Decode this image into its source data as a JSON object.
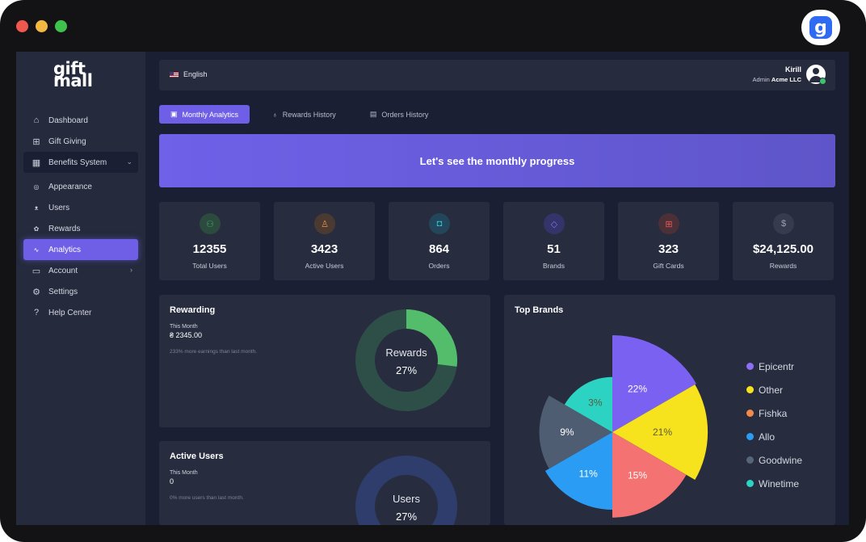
{
  "window": {
    "dots": [
      "#f0574f",
      "#f4b842",
      "#3fc14d"
    ],
    "app_icon": "gift-mall-app-icon",
    "app_icon_letter": "g"
  },
  "brand": {
    "line1": "gift",
    "line2": "mall"
  },
  "sidebar": {
    "items": [
      {
        "label": "Dashboard",
        "icon": "home-icon"
      },
      {
        "label": "Gift Giving",
        "icon": "gift-icon"
      },
      {
        "label": "Benefits System",
        "icon": "grid-icon"
      },
      {
        "label": "Appearance",
        "icon": "palette-icon"
      },
      {
        "label": "Users",
        "icon": "users-icon"
      },
      {
        "label": "Rewards",
        "icon": "award-icon"
      },
      {
        "label": "Analytics",
        "icon": "pulse-icon"
      },
      {
        "label": "Account",
        "icon": "document-icon"
      },
      {
        "label": "Settings",
        "icon": "gear-icon"
      },
      {
        "label": "Help Center",
        "icon": "help-icon"
      }
    ]
  },
  "header": {
    "language": "English",
    "user_name": "Kirill",
    "user_role": "Admin",
    "user_company": "Acme LLC"
  },
  "tabs": [
    {
      "label": "Monthly Analytics",
      "icon": "calendar-icon"
    },
    {
      "label": "Rewards History",
      "icon": "award-icon"
    },
    {
      "label": "Orders History",
      "icon": "box-icon"
    }
  ],
  "banner": {
    "text": "Let's see the monthly progress"
  },
  "stats": [
    {
      "value": "12355",
      "label": "Total Users",
      "icon": "users-icon",
      "color": "#3ea96a"
    },
    {
      "value": "3423",
      "label": "Active Users",
      "icon": "user-icon",
      "color": "#e7904a"
    },
    {
      "value": "864",
      "label": "Orders",
      "icon": "shopping-bag-icon",
      "color": "#33bcd0"
    },
    {
      "value": "51",
      "label": "Brands",
      "icon": "tag-icon",
      "color": "#7d72f0"
    },
    {
      "value": "323",
      "label": "Gift Cards",
      "icon": "gift-icon",
      "color": "#e45858"
    },
    {
      "value": "$24,125.00",
      "label": "Rewards",
      "icon": "dollar-icon",
      "color": "#9aa0b6"
    }
  ],
  "rewarding": {
    "title": "Rewarding",
    "period": "This Month",
    "amount": "₴ 2345.00",
    "note": "233% more earnings than last month.",
    "donut_label": "Rewards",
    "donut_value": "27%",
    "fraction": 0.27,
    "fill_color": "#54bd6b",
    "track_color": "#2e4e48"
  },
  "active_users": {
    "title": "Active Users",
    "period": "This Month",
    "amount": "0",
    "note": "0% more users than last month.",
    "donut_label": "Users",
    "donut_value": "27%",
    "track_color": "#2f3d6c"
  },
  "top_brands": {
    "title": "Top Brands",
    "chart_data": {
      "type": "pie",
      "slices": [
        {
          "name": "Epicentr",
          "value": 22,
          "label": "22%",
          "color": "#7b61f2"
        },
        {
          "name": "Other",
          "value": 21,
          "label": "21%",
          "color": "#f6e21d"
        },
        {
          "name": "Fishka",
          "value": 15,
          "label": "15%",
          "color": "#f47272"
        },
        {
          "name": "Allo",
          "value": 11,
          "label": "11%",
          "color": "#2a9cf4"
        },
        {
          "name": "Goodwine",
          "value": 9,
          "label": "9%",
          "color": "#4f5d72"
        },
        {
          "name": "Winetime",
          "value": 3,
          "label": "3%",
          "color": "#2dd3c2"
        }
      ]
    },
    "legend": [
      {
        "name": "Epicentr",
        "color": "#8b6ff5"
      },
      {
        "name": "Other",
        "color": "#f6e21d"
      },
      {
        "name": "Fishka",
        "color": "#f28a4a"
      },
      {
        "name": "Allo",
        "color": "#2a9cf4"
      },
      {
        "name": "Goodwine",
        "color": "#56657a"
      },
      {
        "name": "Winetime",
        "color": "#2dd3c2"
      }
    ]
  }
}
